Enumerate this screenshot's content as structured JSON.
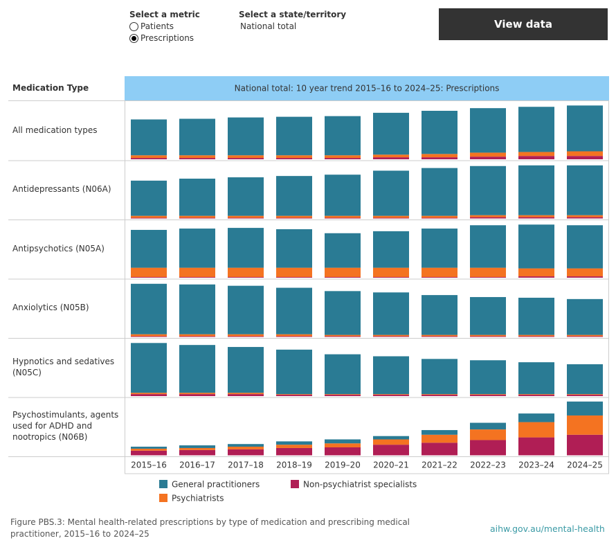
{
  "controls": {
    "metric_label": "Select a metric",
    "options": [
      "Patients",
      "Prescriptions"
    ],
    "state_label": "Select a state/territory",
    "state_value": "National total",
    "button": "View data"
  },
  "chart_data": {
    "type": "bar",
    "stacked": true,
    "title": "National total: 10 year trend 2015–16 to 2024–25: Prescriptions",
    "row_header": "Medication Type",
    "categories": [
      "2015–16",
      "2016–17",
      "2017–18",
      "2018–19",
      "2019–20",
      "2020–21",
      "2021–22",
      "2022–23",
      "2023–24",
      "2024–25"
    ],
    "series": [
      {
        "name": "General practitioners",
        "color": "#2a7b94"
      },
      {
        "name": "Psychiatrists",
        "color": "#f47321"
      },
      {
        "name": "Non-psychiatrist specialists",
        "color": "#b01e55"
      }
    ],
    "panels": [
      {
        "name": "All medication types",
        "ylim": [
          0,
          85
        ],
        "values": [
          [
            54,
            55,
            57,
            58,
            59,
            63,
            65,
            67,
            68,
            69
          ],
          [
            4,
            4,
            4,
            4,
            4,
            4,
            5,
            6,
            6,
            7
          ],
          [
            2,
            2,
            2,
            2,
            2,
            3,
            3,
            4,
            5,
            5
          ]
        ]
      },
      {
        "name": "Antidepressants (N06A)",
        "ylim": [
          0,
          85
        ],
        "values": [
          [
            53,
            56,
            58,
            60,
            62,
            68,
            72,
            74,
            75,
            75
          ],
          [
            3,
            3,
            3,
            3,
            3,
            3,
            3,
            3,
            3,
            3
          ],
          [
            1,
            1,
            1,
            1,
            1,
            1,
            1,
            2,
            2,
            2
          ]
        ]
      },
      {
        "name": "Antipsychotics (N05A)",
        "ylim": [
          0,
          85
        ],
        "values": [
          [
            57,
            59,
            60,
            58,
            52,
            55,
            59,
            64,
            66,
            65
          ],
          [
            14,
            14,
            14,
            14,
            14,
            14,
            14,
            14,
            12,
            12
          ],
          [
            1,
            1,
            1,
            1,
            1,
            1,
            1,
            1,
            2,
            2
          ]
        ]
      },
      {
        "name": "Anxiolytics (N05B)",
        "ylim": [
          0,
          85
        ],
        "values": [
          [
            76,
            75,
            73,
            70,
            66,
            64,
            60,
            57,
            56,
            54
          ],
          [
            3,
            3,
            3,
            3,
            2,
            2,
            2,
            2,
            2,
            2
          ],
          [
            1,
            1,
            1,
            1,
            1,
            1,
            1,
            1,
            1,
            1
          ]
        ]
      },
      {
        "name": "Hypnotics and sedatives (N05C)",
        "ylim": [
          0,
          85
        ],
        "values": [
          [
            75,
            72,
            69,
            67,
            60,
            57,
            53,
            51,
            48,
            45
          ],
          [
            2,
            2,
            2,
            1,
            1,
            1,
            1,
            1,
            1,
            1
          ],
          [
            3,
            3,
            3,
            2,
            2,
            2,
            2,
            2,
            2,
            2
          ]
        ]
      },
      {
        "name": "Psychostimulants, agents used for ADHD and nootropics (N06B)",
        "ylim": [
          0,
          85
        ],
        "values": [
          [
            3,
            4,
            4,
            5,
            6,
            5,
            7,
            10,
            13,
            21
          ],
          [
            3,
            3,
            4,
            5,
            6,
            8,
            12,
            16,
            23,
            29
          ],
          [
            7,
            8,
            9,
            11,
            12,
            16,
            19,
            23,
            27,
            31
          ]
        ]
      }
    ]
  },
  "caption": "Figure PBS.3: Mental health-related prescriptions by type of medication and prescribing medical practitioner, 2015–16 to 2024–25",
  "source": "aihw.gov.au/mental-health"
}
